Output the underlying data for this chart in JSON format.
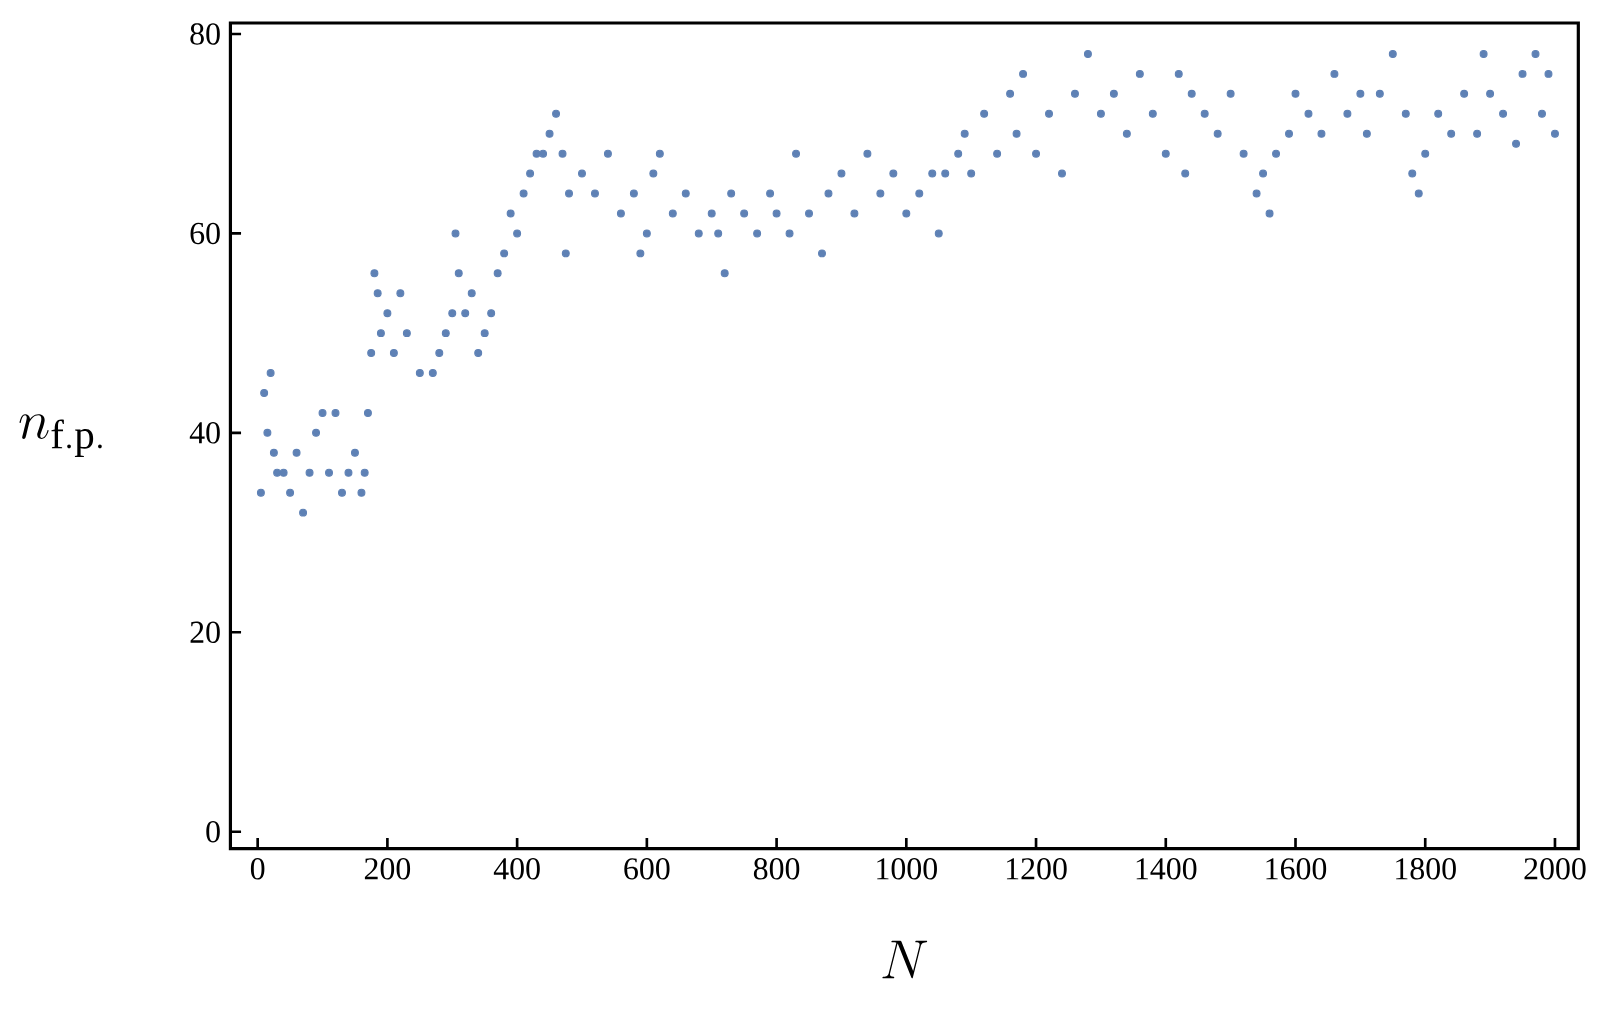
{
  "chart_data": {
    "type": "scatter",
    "xlabel": "N",
    "ylabel": "n_{\\mathrm{f.p.}}",
    "x": [
      5,
      10,
      15,
      20,
      25,
      30,
      40,
      50,
      60,
      70,
      80,
      90,
      100,
      110,
      120,
      130,
      140,
      150,
      160,
      165,
      170,
      175,
      180,
      185,
      190,
      200,
      210,
      220,
      230,
      250,
      270,
      280,
      290,
      300,
      305,
      310,
      320,
      330,
      340,
      350,
      360,
      370,
      380,
      390,
      400,
      410,
      420,
      430,
      440,
      450,
      460,
      470,
      475,
      480,
      500,
      520,
      540,
      560,
      580,
      590,
      600,
      610,
      620,
      640,
      660,
      680,
      700,
      710,
      720,
      730,
      750,
      770,
      790,
      800,
      820,
      830,
      850,
      870,
      880,
      900,
      920,
      940,
      960,
      980,
      1000,
      1020,
      1040,
      1050,
      1060,
      1080,
      1090,
      1100,
      1120,
      1140,
      1160,
      1170,
      1180,
      1200,
      1220,
      1240,
      1260,
      1280,
      1300,
      1320,
      1340,
      1360,
      1380,
      1400,
      1420,
      1430,
      1440,
      1460,
      1480,
      1500,
      1520,
      1540,
      1550,
      1560,
      1570,
      1590,
      1600,
      1620,
      1640,
      1660,
      1680,
      1700,
      1710,
      1730,
      1750,
      1770,
      1780,
      1790,
      1800,
      1820,
      1840,
      1860,
      1880,
      1890,
      1900,
      1920,
      1940,
      1950,
      1970,
      1980,
      1990,
      2000
    ],
    "values": [
      34,
      44,
      40,
      46,
      38,
      36,
      36,
      34,
      38,
      32,
      36,
      40,
      42,
      36,
      42,
      34,
      36,
      38,
      34,
      36,
      42,
      48,
      56,
      54,
      50,
      52,
      48,
      54,
      50,
      46,
      46,
      48,
      50,
      52,
      60,
      56,
      52,
      54,
      48,
      50,
      52,
      56,
      58,
      62,
      60,
      64,
      66,
      68,
      68,
      70,
      72,
      68,
      58,
      64,
      66,
      64,
      68,
      62,
      64,
      58,
      60,
      66,
      68,
      62,
      64,
      60,
      62,
      60,
      56,
      64,
      62,
      60,
      64,
      62,
      60,
      68,
      62,
      58,
      64,
      66,
      62,
      68,
      64,
      66,
      62,
      64,
      66,
      60,
      66,
      68,
      70,
      66,
      72,
      68,
      74,
      70,
      76,
      68,
      72,
      66,
      74,
      78,
      72,
      74,
      70,
      76,
      72,
      68,
      76,
      66,
      74,
      72,
      70,
      74,
      68,
      64,
      66,
      62,
      68,
      70,
      74,
      72,
      70,
      76,
      72,
      74,
      70,
      74,
      78,
      72,
      66,
      64,
      68,
      72,
      70,
      74,
      70,
      78,
      74,
      72,
      69,
      76,
      78,
      72,
      76,
      70
    ],
    "color": "#5e81b5",
    "marker": "circle",
    "xlim": [
      -42,
      2036
    ],
    "ylim": [
      -1.7,
      81.1
    ],
    "xticks": [
      0,
      200,
      400,
      600,
      800,
      1000,
      1200,
      1400,
      1600,
      1800,
      2000
    ],
    "yticks": [
      0,
      20,
      40,
      60,
      80
    ],
    "grid": false
  }
}
